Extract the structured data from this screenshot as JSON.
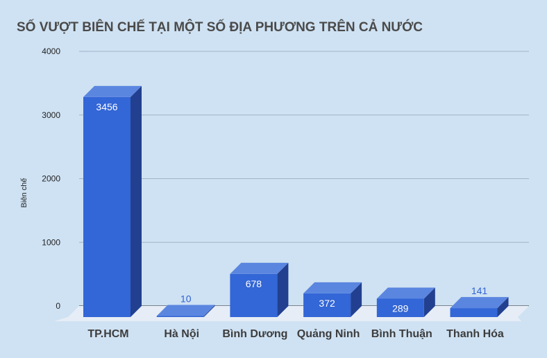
{
  "chart_data": {
    "type": "bar",
    "title": "SỐ VƯỢT BIÊN CHẾ TẠI MỘT SỐ ĐỊA PHƯƠNG TRÊN CẢ NƯỚC",
    "ylabel": "Biên chế",
    "xlabel": "",
    "categories": [
      "TP.HCM",
      "Hà Nội",
      "Bình Dương",
      "Quảng Ninh",
      "Bình Thuận",
      "Thanh Hóa"
    ],
    "values": [
      3456,
      10,
      678,
      372,
      289,
      141
    ],
    "data_labels": [
      "3456",
      "10",
      "678",
      "372",
      "289",
      "141"
    ],
    "ylim": [
      0,
      4000
    ],
    "yticks": [
      0,
      1000,
      2000,
      3000,
      4000
    ],
    "ytick_labels": [
      "0",
      "1000",
      "2000",
      "3000",
      "4000"
    ],
    "grid": true,
    "style": "3d-bar",
    "colors": {
      "background": "#cfe2f3",
      "bar_front": "#3366d6",
      "bar_top": "#5b86e0",
      "bar_side": "#22408f",
      "floor": "#e6edf6",
      "grid": "#9fb3c8",
      "label_outside": "#2f62d3"
    }
  }
}
